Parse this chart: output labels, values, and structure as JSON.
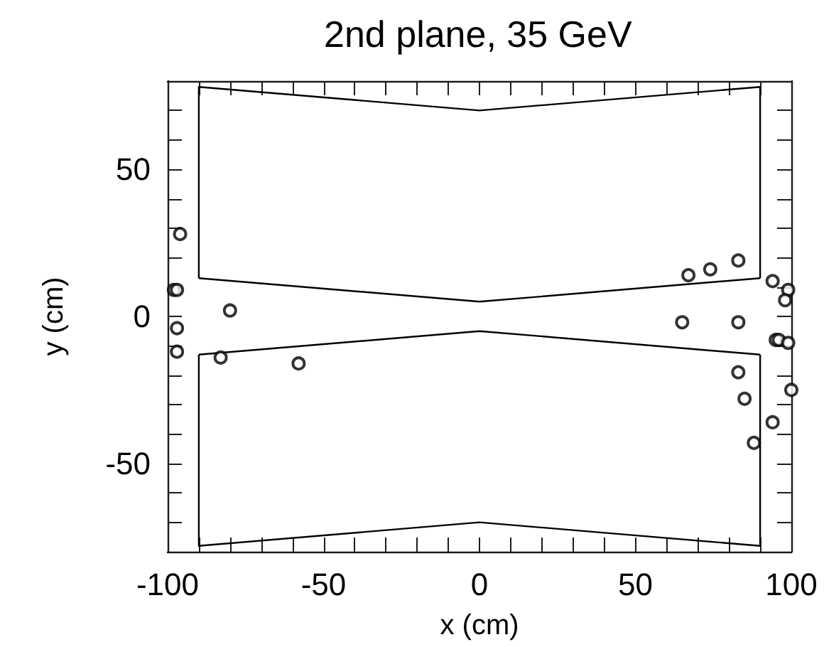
{
  "chart_data": {
    "type": "scatter",
    "title": "2nd plane, 35 GeV",
    "xlabel": "x (cm)",
    "ylabel": "y (cm)",
    "xlim": [
      -100,
      100
    ],
    "ylim": [
      -80,
      80
    ],
    "xticks": [
      -100,
      {
        "value": -90,
        "label": null
      },
      {
        "value": -80,
        "label": null
      },
      {
        "value": -70,
        "label": null
      },
      {
        "value": -60,
        "label": null
      },
      -50,
      {
        "value": -40,
        "label": null
      },
      {
        "value": -30,
        "label": null
      },
      {
        "value": -20,
        "label": null
      },
      {
        "value": -10,
        "label": null
      },
      0,
      {
        "value": 10,
        "label": null
      },
      {
        "value": 20,
        "label": null
      },
      {
        "value": 30,
        "label": null
      },
      {
        "value": 40,
        "label": null
      },
      50,
      {
        "value": 60,
        "label": null
      },
      {
        "value": 70,
        "label": null
      },
      {
        "value": 80,
        "label": null
      },
      {
        "value": 90,
        "label": null
      },
      100
    ],
    "yticks": [
      {
        "value": -80,
        "label": null
      },
      {
        "value": -70,
        "label": null
      },
      {
        "value": -60,
        "label": null
      },
      -50,
      {
        "value": -40,
        "label": null
      },
      {
        "value": -30,
        "label": null
      },
      {
        "value": -20,
        "label": null
      },
      {
        "value": -10,
        "label": null
      },
      0,
      {
        "value": 10,
        "label": null
      },
      {
        "value": 20,
        "label": null
      },
      {
        "value": 30,
        "label": null
      },
      {
        "value": 40,
        "label": null
      },
      50,
      {
        "value": 60,
        "label": null
      },
      {
        "value": 70,
        "label": null
      },
      {
        "value": 80,
        "label": null
      }
    ],
    "grid": false,
    "series": [
      {
        "type": "line",
        "color": "#000000",
        "marker": "none",
        "x": [
          -90,
          -90,
          0,
          90,
          90
        ],
        "values": [
          13,
          78,
          70,
          78,
          13
        ]
      },
      {
        "type": "line",
        "color": "#000000",
        "marker": "none",
        "x": [
          -90,
          0,
          90
        ],
        "values": [
          13,
          5,
          13
        ]
      },
      {
        "type": "line",
        "color": "#000000",
        "marker": "none",
        "x": [
          -90,
          0,
          90
        ],
        "values": [
          -13,
          -5,
          -13
        ]
      },
      {
        "type": "line",
        "color": "#000000",
        "marker": "none",
        "x": [
          -90,
          -90,
          0,
          90,
          90
        ],
        "values": [
          -13,
          -78,
          -70,
          -78,
          -13
        ]
      },
      {
        "color": "#000000",
        "marker": "circle",
        "x": [
          -96,
          -98,
          -97,
          -80,
          -97,
          -97,
          -83,
          -58,
          67,
          74,
          83,
          94,
          99,
          98,
          65,
          83,
          95,
          96,
          99,
          83,
          85,
          100,
          94,
          88
        ],
        "values": [
          28,
          9,
          9,
          2,
          -4,
          -12,
          -14,
          -16,
          14,
          16,
          19,
          12,
          9,
          5.5,
          -2,
          -2,
          -8,
          -8,
          -9,
          -19,
          -28,
          -25,
          -36,
          -43
        ]
      }
    ]
  }
}
